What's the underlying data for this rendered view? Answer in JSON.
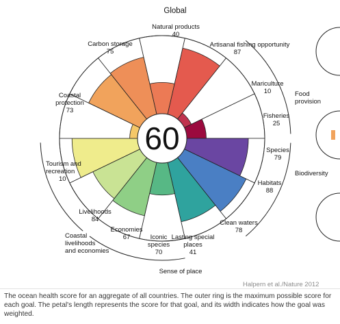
{
  "chart_data": {
    "type": "flower",
    "title": "Global",
    "center_score": "60",
    "ymax": 100,
    "petals": [
      {
        "name": "Natural products",
        "value": 40,
        "color": "#ec7a55"
      },
      {
        "name": "Artisanal fishing opportunity",
        "value": 87,
        "color": "#e45a4e"
      },
      {
        "name": "Mariculture",
        "value": 10,
        "color": "#c0334e"
      },
      {
        "name": "Fisheries",
        "value": 25,
        "color": "#9b0a3e"
      },
      {
        "name": "Species",
        "value": 79,
        "color": "#6a46a2"
      },
      {
        "name": "Habitats",
        "value": 88,
        "color": "#4a7fc4"
      },
      {
        "name": "Clean waters",
        "value": 78,
        "color": "#2fa39e"
      },
      {
        "name": "Lasting special places",
        "value": 41,
        "color": "#57b885"
      },
      {
        "name": "Iconic species",
        "value": 70,
        "color": "#8fcf86"
      },
      {
        "name": "Economies",
        "value": 67,
        "color": "#c9e394"
      },
      {
        "name": "Livelihoods",
        "value": 84,
        "color": "#efec8c"
      },
      {
        "name": "Tourism and recreation",
        "value": 10,
        "color": "#f5c868"
      },
      {
        "name": "Coastal protection",
        "value": 73,
        "color": "#f1a35c"
      },
      {
        "name": "Carbon storage",
        "value": 75,
        "color": "#ee8f58"
      }
    ],
    "groups": [
      "Food provision",
      "Biodiversity",
      "Sense of place",
      "Coastal livelihoods and economies"
    ]
  },
  "labels": {
    "natural_products": "Natural products",
    "natural_products_v": "40",
    "artisanal": "Artisanal fishing opportunity",
    "artisanal_v": "87",
    "mariculture": "Mariculture",
    "mariculture_v": "10",
    "fisheries": "Fisheries",
    "fisheries_v": "25",
    "species": "Species",
    "species_v": "79",
    "habitats": "Habitats",
    "habitats_v": "88",
    "clean_waters": "Clean waters",
    "clean_waters_v": "78",
    "lasting_1": "Lasting special",
    "lasting_2": "places",
    "lasting_v": "41",
    "iconic_1": "Iconic",
    "iconic_2": "species",
    "iconic_v": "70",
    "economies": "Economies",
    "economies_v": "67",
    "livelihoods": "Livelihoods",
    "livelihoods_v": "84",
    "tourism_1": "Tourism and",
    "tourism_2": "recreation",
    "tourism_v": "10",
    "coastal_1": "Coastal",
    "coastal_2": "protection",
    "coastal_v": "73",
    "carbon": "Carbon storage",
    "carbon_v": "75",
    "food_1": "Food",
    "food_2": "provision",
    "biodiversity": "Biodiversity",
    "sense": "Sense of place",
    "cle_1": "Coastal",
    "cle_2": "livelihoods",
    "cle_3": "and economies"
  },
  "credit": "Halpern et al./Nature 2012",
  "caption": "The ocean health score for an aggregate of all countries. The outer ring is the maximum possible score for each goal. The petal's length represents the score for that goal, and its width indicates how the goal was weighted."
}
